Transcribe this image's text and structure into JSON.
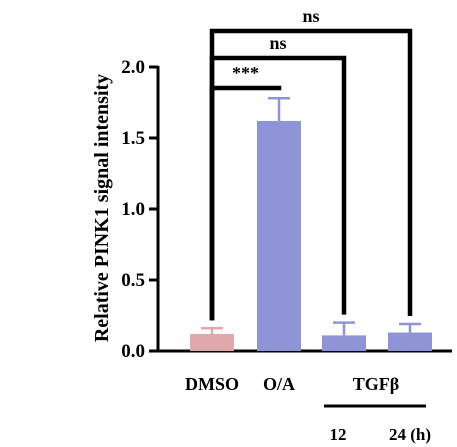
{
  "chart_data": {
    "type": "bar",
    "ylabel": "Relative PINK1 signal intensity",
    "ylim": [
      0,
      2.0
    ],
    "yticks": [
      "0.0",
      "0.5",
      "1.0",
      "1.5",
      "2.0"
    ],
    "ytick_values": [
      0,
      0.5,
      1.0,
      1.5,
      2.0
    ],
    "categories": [
      "DMSO",
      "O/A",
      "",
      ""
    ],
    "group_label": "TGFβ",
    "time_labels": [
      "12",
      "24 (h)"
    ],
    "values": [
      0.12,
      1.62,
      0.11,
      0.13
    ],
    "errors": [
      0.04,
      0.16,
      0.09,
      0.06
    ],
    "colors": [
      "#dfa8aa",
      "#8f94d6",
      "#8f94d6",
      "#8f94d6"
    ],
    "significance": [
      {
        "from": 0,
        "to": 1,
        "label": "***"
      },
      {
        "from": 0,
        "to": 2,
        "label": "ns"
      },
      {
        "from": 0,
        "to": 3,
        "label": "ns"
      }
    ],
    "grid": false
  }
}
